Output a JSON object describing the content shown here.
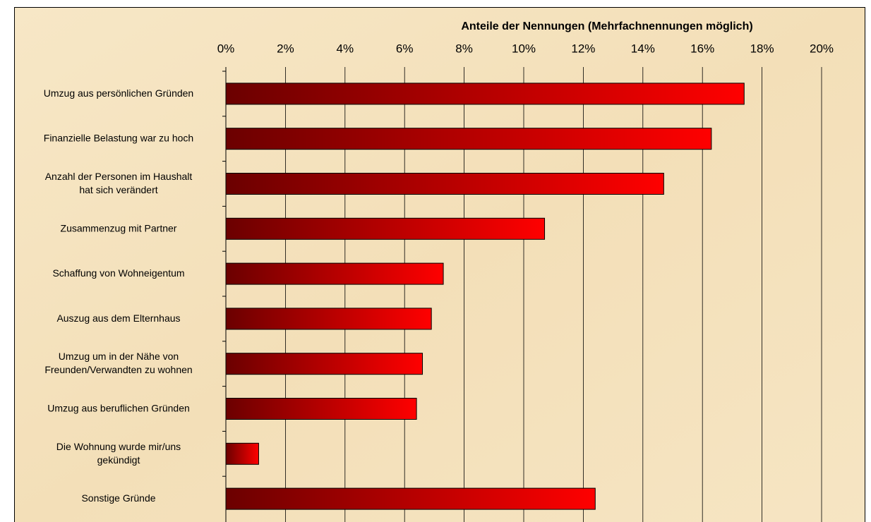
{
  "chart_data": {
    "type": "bar",
    "orientation": "horizontal",
    "xlabel": "Anteile der Nennungen (Mehrfachnennungen möglich)",
    "categories": [
      "Umzug aus persönlichen Gründen",
      "Finanzielle Belastung war zu hoch",
      "Anzahl der Personen im Haushalt\nhat sich verändert",
      "Zusammenzug mit Partner",
      "Schaffung von Wohneigentum",
      "Auszug aus dem Elternhaus",
      "Umzug um in der Nähe von\nFreunden/Verwandten zu wohnen",
      "Umzug aus beruflichen Gründen",
      "Die Wohnung wurde mir/uns\ngekündigt",
      "Sonstige Gründe"
    ],
    "values": [
      17.4,
      16.3,
      14.7,
      10.7,
      7.3,
      6.9,
      6.6,
      6.4,
      1.1,
      12.4
    ],
    "color": [
      "#6b0000",
      "#ff0000"
    ],
    "xlim": [
      0,
      20
    ],
    "xticks": [
      {
        "value": 0,
        "label": "0%"
      },
      {
        "value": 2,
        "label": "2%"
      },
      {
        "value": 4,
        "label": "4%"
      },
      {
        "value": 6,
        "label": "6%"
      },
      {
        "value": 8,
        "label": "8%"
      },
      {
        "value": 10,
        "label": "10%"
      },
      {
        "value": 12,
        "label": "12%"
      },
      {
        "value": 14,
        "label": "14%"
      },
      {
        "value": 16,
        "label": "16%"
      },
      {
        "value": 18,
        "label": "18%"
      },
      {
        "value": 20,
        "label": "20%"
      }
    ],
    "grid": true
  }
}
